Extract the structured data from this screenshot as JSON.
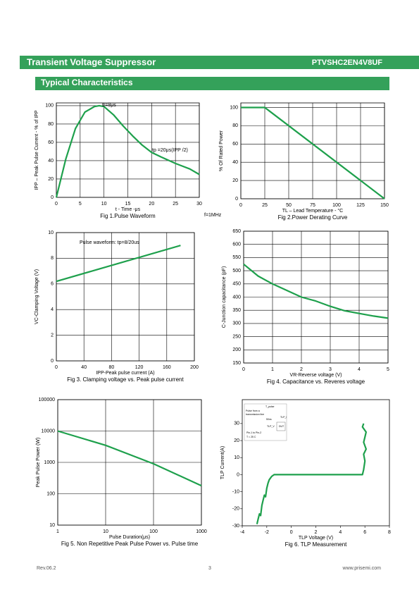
{
  "header": {
    "title": "Transient Voltage Suppressor",
    "part_number": "PTVSHC2EN4V8UF"
  },
  "section": "Typical Characteristics",
  "footer": {
    "revision": "Rev.06.2",
    "page": "3",
    "url": "www.prisemi.com"
  },
  "chart_data": [
    {
      "type": "line",
      "title": "Fig 1.Pulse Waveform",
      "xlabel": "t - Time -μs",
      "ylabel": "IPP – Peak Pulse Current - % of IPP",
      "x": [
        0,
        2,
        4,
        6,
        8,
        9,
        10,
        12,
        14,
        16,
        18,
        20,
        22,
        25,
        28,
        30
      ],
      "values": [
        0,
        42,
        75,
        93,
        99,
        100,
        99,
        90,
        78,
        67,
        57,
        49,
        44,
        37,
        31,
        25
      ],
      "color": "#1ea04c",
      "xlim": [
        0,
        30
      ],
      "ylim": [
        0,
        103
      ],
      "xticks": [
        0,
        5,
        10,
        15,
        20,
        25,
        30
      ],
      "yticks": [
        0,
        20,
        40,
        60,
        80,
        100
      ],
      "grid": true,
      "annotations": [
        "tr=8μs",
        "tp =20μs(IPP /2)",
        "f=1MHz"
      ]
    },
    {
      "type": "line",
      "title": "Fig 2.Power Derating Curve",
      "xlabel": "TL – Lead Temperature - °C",
      "ylabel": "% Of Rated Power",
      "x": [
        0,
        25,
        150
      ],
      "values": [
        100,
        100,
        0
      ],
      "color": "#1ea04c",
      "xlim": [
        0,
        150
      ],
      "ylim": [
        0,
        105
      ],
      "xticks": [
        0,
        25,
        50,
        75,
        100,
        125,
        150
      ],
      "yticks": [
        0,
        20,
        40,
        60,
        80,
        100
      ],
      "grid": true
    },
    {
      "type": "line",
      "title": "Fig 3. Clamping voltage vs. Peak pulse current",
      "xlabel": "IPP-Peak pulse current (A)",
      "ylabel": "VC-Clamping Voltage (V)",
      "x": [
        0,
        180
      ],
      "values": [
        6.2,
        9.0
      ],
      "color": "#1ea04c",
      "xlim": [
        0,
        200
      ],
      "ylim": [
        0,
        10
      ],
      "xticks": [
        0,
        40,
        80,
        120,
        160,
        200
      ],
      "yticks": [
        0,
        2,
        4,
        6,
        8,
        10
      ],
      "grid": true,
      "annotations": [
        "Pulse waveform: tp=8/20us"
      ]
    },
    {
      "type": "line",
      "title": "Fig 4. Capacitance vs. Reveres voltage",
      "xlabel": "VR-Reverse voltage (V)",
      "ylabel": "C-Junction capacitance (pF)",
      "x": [
        0,
        0.5,
        1,
        1.5,
        2,
        2.5,
        3,
        3.5,
        4,
        4.5,
        5
      ],
      "values": [
        525,
        480,
        450,
        425,
        400,
        385,
        365,
        348,
        338,
        328,
        320
      ],
      "color": "#1ea04c",
      "xlim": [
        0,
        5
      ],
      "ylim": [
        150,
        650
      ],
      "xticks": [
        0,
        1,
        2,
        3,
        4,
        5
      ],
      "yticks": [
        150,
        200,
        250,
        300,
        350,
        400,
        450,
        500,
        550,
        600,
        650
      ],
      "grid": true
    },
    {
      "type": "line",
      "title": "Fig 5. Non Repetitive Peak Pulse Power vs. Pulse time",
      "xlabel": "Pulse Duration(μs)",
      "ylabel": "Peak Pulse Power (W)",
      "x": [
        1,
        10,
        100,
        1000
      ],
      "values": [
        10000,
        3500,
        900,
        180
      ],
      "color": "#1ea04c",
      "xlim": [
        1,
        1000
      ],
      "ylim": [
        10,
        100000
      ],
      "xticks": [
        1,
        10,
        100,
        1000
      ],
      "yticks": [
        10,
        100,
        1000,
        10000,
        100000
      ],
      "grid": true,
      "log_x": true,
      "log_y": true
    },
    {
      "type": "line",
      "title": "Fig 6. TLP Measurement",
      "xlabel": "TLP Voltage (V)",
      "ylabel": "TLP Current(A)",
      "x": [
        -2.8,
        -2.7,
        -2.6,
        -2.5,
        -2.4,
        -2.3,
        -2.2,
        -2.1,
        -2.0,
        -1.9,
        -1.8,
        -1.6,
        -1.4,
        -1.2,
        -1,
        0,
        2,
        4,
        5.8,
        5.9,
        6.0,
        5.9,
        6.1,
        5.9,
        6.0,
        6.1,
        5.8,
        5.9
      ],
      "values": [
        -29,
        -26,
        -23,
        -24,
        -18,
        -15,
        -12,
        -13,
        -8,
        -5,
        -3,
        -1,
        0,
        0,
        0,
        0,
        0,
        0,
        0,
        3,
        8,
        12,
        15,
        19,
        22,
        25,
        28,
        30
      ],
      "color": "#1ea04c",
      "xlim": [
        -4,
        8
      ],
      "ylim": [
        -30,
        44
      ],
      "xticks": [
        -4,
        -2,
        0,
        2,
        4,
        6,
        8
      ],
      "yticks": [
        -30,
        -20,
        -10,
        0,
        10,
        20,
        30
      ],
      "grid": false,
      "annotations": [
        "T_pulse",
        "Pulse from a",
        "transmission line",
        "50ns",
        "TLP_I",
        "TLP_V",
        "DUT",
        "Pin-1 to Pin-2",
        "T = 25 C"
      ]
    }
  ]
}
